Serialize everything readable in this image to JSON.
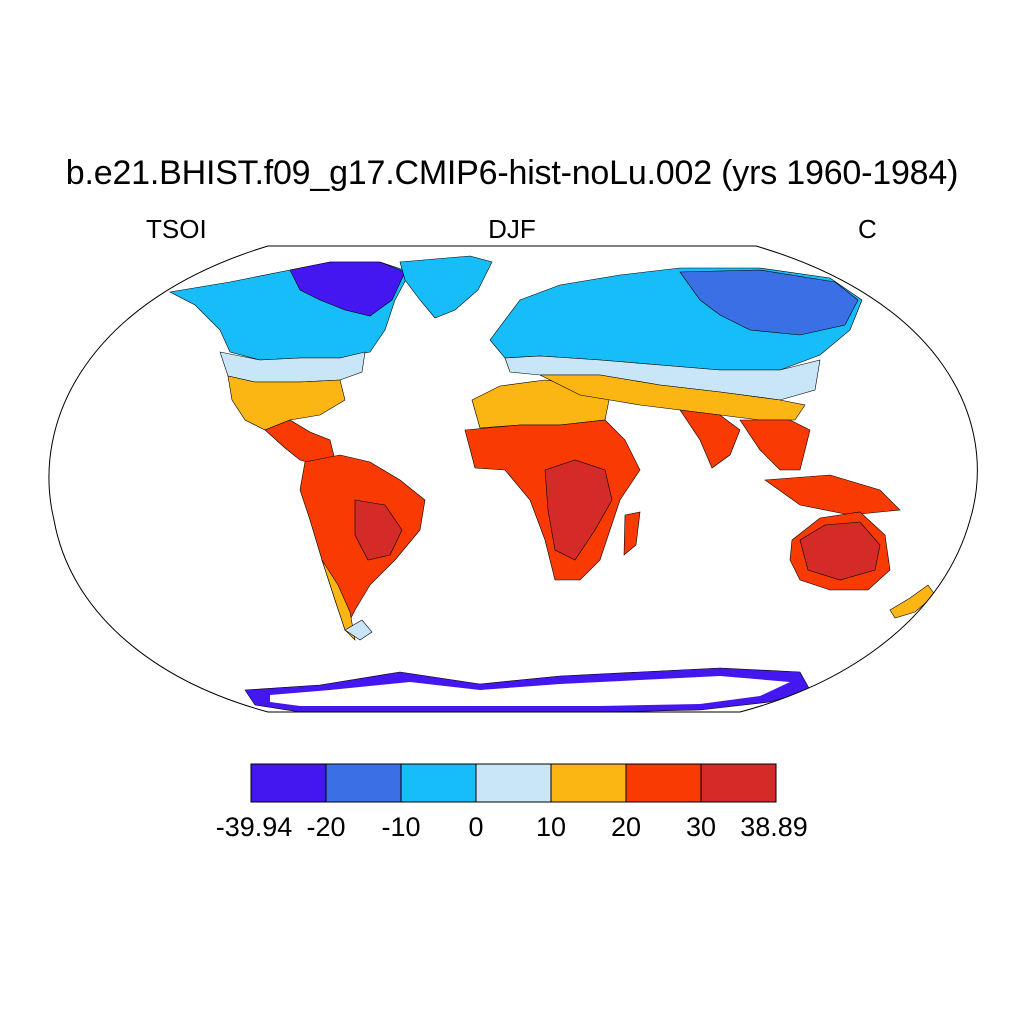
{
  "title": "b.e21.BHIST.f09_g17.CMIP6-hist-noLu.002 (yrs 1960-1984)",
  "left_label": "TSOI",
  "center_label": "DJF",
  "right_label": "C",
  "colorbar": {
    "colors": [
      "#4416f0",
      "#3a6fe6",
      "#17bdf8",
      "#c8e6f8",
      "#fbb613",
      "#f93a02",
      "#d42b29"
    ],
    "ticks": [
      "-39.94",
      "-20",
      "-10",
      "0",
      "10",
      "20",
      "30",
      "38.89"
    ]
  },
  "palette": {
    "ocean": "#ffffff",
    "coast": "#000000"
  }
}
